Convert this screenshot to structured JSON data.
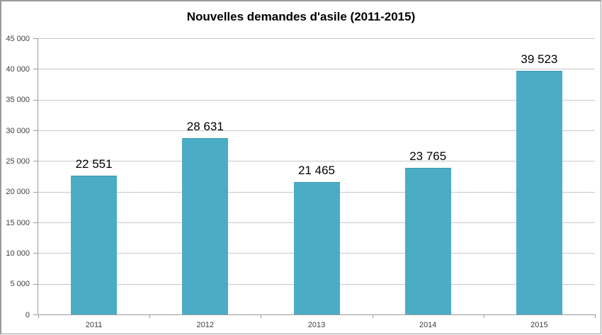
{
  "chart_data": {
    "type": "bar",
    "title": "Nouvelles demandes d'asile (2011-2015)",
    "categories": [
      "2011",
      "2012",
      "2013",
      "2014",
      "2015"
    ],
    "values": [
      22551,
      28631,
      21465,
      23765,
      39523
    ],
    "value_labels": [
      "22 551",
      "28 631",
      "21 465",
      "23 765",
      "39 523"
    ],
    "xlabel": "",
    "ylabel": "",
    "ylim": [
      0,
      45000
    ],
    "y_tick_step": 5000,
    "y_tick_labels": [
      "0",
      "5 000",
      "10 000",
      "15 000",
      "20 000",
      "25 000",
      "30 000",
      "35 000",
      "40 000",
      "45 000"
    ],
    "grid": "horizontal",
    "legend_position": "none",
    "colors": {
      "bar_fill": "#4BACC6",
      "bar_border": "#3E97B0",
      "gridline": "#c9c9c9",
      "axis": "#9b9b9b",
      "tick_label": "#3f3f3f",
      "value_label": "#000000",
      "frame_border": "#9a9a9a",
      "background": "#ffffff"
    }
  }
}
